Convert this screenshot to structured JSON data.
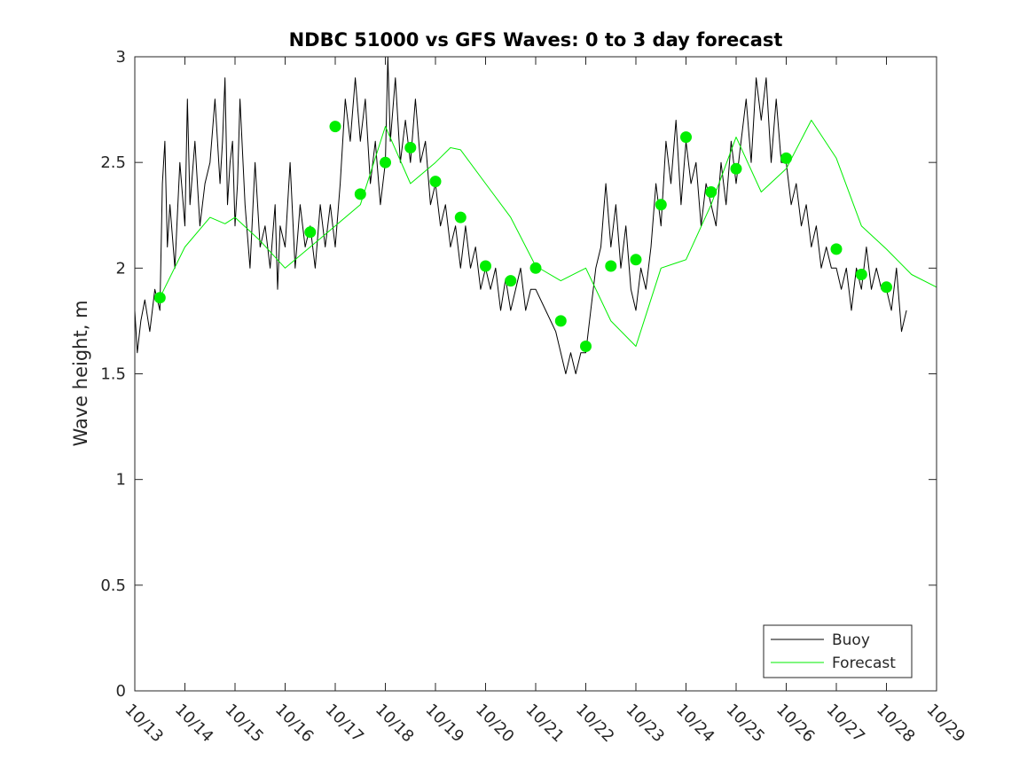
{
  "chart_data": {
    "type": "line",
    "title": "NDBC 51000 vs GFS Waves: 0 to 3 day forecast",
    "xlabel": "",
    "ylabel": "Wave height, m",
    "x_tick_labels": [
      "10/13",
      "10/14",
      "10/15",
      "10/16",
      "10/17",
      "10/18",
      "10/19",
      "10/20",
      "10/21",
      "10/22",
      "10/23",
      "10/24",
      "10/25",
      "10/26",
      "10/27",
      "10/28",
      "10/29"
    ],
    "y_ticks": [
      0,
      0.5,
      1,
      1.5,
      2,
      2.5,
      3
    ],
    "y_tick_labels": [
      "0",
      "0.5",
      "1",
      "1.5",
      "2",
      "2.5",
      "3"
    ],
    "xlim": [
      0,
      16
    ],
    "ylim": [
      0,
      3
    ],
    "x_units": "days since 10/13",
    "legend": {
      "position": "bottom-right",
      "entries": [
        "Buoy",
        "Forecast"
      ]
    },
    "colors": {
      "buoy": "#000000",
      "forecast": "#00ee00"
    },
    "series": [
      {
        "name": "Buoy",
        "color": "#000000",
        "points": [
          [
            0,
            1.8
          ],
          [
            0.05,
            1.6
          ],
          [
            0.12,
            1.75
          ],
          [
            0.2,
            1.85
          ],
          [
            0.3,
            1.7
          ],
          [
            0.4,
            1.9
          ],
          [
            0.5,
            1.8
          ],
          [
            0.55,
            2.4
          ],
          [
            0.6,
            2.6
          ],
          [
            0.65,
            2.1
          ],
          [
            0.7,
            2.3
          ],
          [
            0.8,
            2.0
          ],
          [
            0.9,
            2.5
          ],
          [
            1.0,
            2.2
          ],
          [
            1.05,
            2.8
          ],
          [
            1.1,
            2.3
          ],
          [
            1.2,
            2.6
          ],
          [
            1.3,
            2.2
          ],
          [
            1.4,
            2.4
          ],
          [
            1.5,
            2.5
          ],
          [
            1.6,
            2.8
          ],
          [
            1.7,
            2.4
          ],
          [
            1.75,
            2.6
          ],
          [
            1.8,
            2.9
          ],
          [
            1.85,
            2.3
          ],
          [
            1.9,
            2.5
          ],
          [
            1.95,
            2.6
          ],
          [
            2.0,
            2.2
          ],
          [
            2.05,
            2.4
          ],
          [
            2.1,
            2.8
          ],
          [
            2.2,
            2.3
          ],
          [
            2.3,
            2.0
          ],
          [
            2.4,
            2.5
          ],
          [
            2.5,
            2.1
          ],
          [
            2.6,
            2.2
          ],
          [
            2.7,
            2.0
          ],
          [
            2.8,
            2.3
          ],
          [
            2.85,
            1.9
          ],
          [
            2.9,
            2.2
          ],
          [
            3.0,
            2.1
          ],
          [
            3.1,
            2.5
          ],
          [
            3.2,
            2.0
          ],
          [
            3.3,
            2.3
          ],
          [
            3.4,
            2.1
          ],
          [
            3.5,
            2.2
          ],
          [
            3.6,
            2.0
          ],
          [
            3.7,
            2.3
          ],
          [
            3.8,
            2.1
          ],
          [
            3.9,
            2.3
          ],
          [
            4.0,
            2.1
          ],
          [
            4.1,
            2.4
          ],
          [
            4.2,
            2.8
          ],
          [
            4.3,
            2.6
          ],
          [
            4.4,
            2.9
          ],
          [
            4.5,
            2.6
          ],
          [
            4.6,
            2.8
          ],
          [
            4.7,
            2.4
          ],
          [
            4.8,
            2.6
          ],
          [
            4.9,
            2.3
          ],
          [
            5.0,
            2.5
          ],
          [
            5.05,
            3.0
          ],
          [
            5.1,
            2.6
          ],
          [
            5.2,
            2.9
          ],
          [
            5.3,
            2.5
          ],
          [
            5.4,
            2.7
          ],
          [
            5.5,
            2.5
          ],
          [
            5.6,
            2.8
          ],
          [
            5.7,
            2.5
          ],
          [
            5.8,
            2.6
          ],
          [
            5.9,
            2.3
          ],
          [
            6.0,
            2.4
          ],
          [
            6.1,
            2.2
          ],
          [
            6.2,
            2.3
          ],
          [
            6.3,
            2.1
          ],
          [
            6.4,
            2.2
          ],
          [
            6.5,
            2.0
          ],
          [
            6.6,
            2.2
          ],
          [
            6.7,
            2.0
          ],
          [
            6.8,
            2.1
          ],
          [
            6.9,
            1.9
          ],
          [
            7.0,
            2.0
          ],
          [
            7.1,
            1.9
          ],
          [
            7.2,
            2.0
          ],
          [
            7.3,
            1.8
          ],
          [
            7.4,
            1.95
          ],
          [
            7.5,
            1.8
          ],
          [
            7.6,
            1.9
          ],
          [
            7.7,
            2.0
          ],
          [
            7.8,
            1.8
          ],
          [
            7.9,
            1.9
          ],
          [
            8.0,
            1.9
          ],
          [
            8.2,
            1.8
          ],
          [
            8.4,
            1.7
          ],
          [
            8.5,
            1.6
          ],
          [
            8.6,
            1.5
          ],
          [
            8.7,
            1.6
          ],
          [
            8.8,
            1.5
          ],
          [
            8.9,
            1.6
          ],
          [
            9.0,
            1.6
          ],
          [
            9.1,
            1.8
          ],
          [
            9.2,
            2.0
          ],
          [
            9.3,
            2.1
          ],
          [
            9.4,
            2.4
          ],
          [
            9.5,
            2.1
          ],
          [
            9.6,
            2.3
          ],
          [
            9.7,
            2.0
          ],
          [
            9.8,
            2.2
          ],
          [
            9.9,
            1.9
          ],
          [
            10.0,
            1.8
          ],
          [
            10.1,
            2.0
          ],
          [
            10.2,
            1.9
          ],
          [
            10.3,
            2.1
          ],
          [
            10.4,
            2.4
          ],
          [
            10.5,
            2.2
          ],
          [
            10.6,
            2.6
          ],
          [
            10.7,
            2.4
          ],
          [
            10.8,
            2.7
          ],
          [
            10.9,
            2.3
          ],
          [
            11.0,
            2.6
          ],
          [
            11.1,
            2.4
          ],
          [
            11.2,
            2.5
          ],
          [
            11.3,
            2.2
          ],
          [
            11.4,
            2.4
          ],
          [
            11.5,
            2.3
          ],
          [
            11.6,
            2.2
          ],
          [
            11.7,
            2.5
          ],
          [
            11.8,
            2.3
          ],
          [
            11.9,
            2.6
          ],
          [
            12.0,
            2.4
          ],
          [
            12.1,
            2.6
          ],
          [
            12.2,
            2.8
          ],
          [
            12.3,
            2.5
          ],
          [
            12.4,
            2.9
          ],
          [
            12.5,
            2.7
          ],
          [
            12.6,
            2.9
          ],
          [
            12.7,
            2.5
          ],
          [
            12.8,
            2.8
          ],
          [
            12.9,
            2.5
          ],
          [
            13.0,
            2.5
          ],
          [
            13.1,
            2.3
          ],
          [
            13.2,
            2.4
          ],
          [
            13.3,
            2.2
          ],
          [
            13.4,
            2.3
          ],
          [
            13.5,
            2.1
          ],
          [
            13.6,
            2.2
          ],
          [
            13.7,
            2.0
          ],
          [
            13.8,
            2.1
          ],
          [
            13.9,
            2.0
          ],
          [
            14.0,
            2.0
          ],
          [
            14.1,
            1.9
          ],
          [
            14.2,
            2.0
          ],
          [
            14.3,
            1.8
          ],
          [
            14.4,
            2.0
          ],
          [
            14.5,
            1.9
          ],
          [
            14.6,
            2.1
          ],
          [
            14.7,
            1.9
          ],
          [
            14.8,
            2.0
          ],
          [
            14.9,
            1.9
          ],
          [
            15.0,
            1.9
          ],
          [
            15.1,
            1.8
          ],
          [
            15.2,
            2.0
          ],
          [
            15.3,
            1.7
          ],
          [
            15.4,
            1.8
          ]
        ]
      },
      {
        "name": "Forecast",
        "color": "#00ee00",
        "points": [
          [
            0.5,
            1.86
          ],
          [
            1.0,
            2.1
          ],
          [
            1.5,
            2.24
          ],
          [
            1.8,
            2.21
          ],
          [
            2.0,
            2.24
          ],
          [
            2.5,
            2.13
          ],
          [
            3.0,
            2.0
          ],
          [
            3.5,
            2.1
          ],
          [
            4.0,
            2.2
          ],
          [
            4.5,
            2.3
          ],
          [
            5.0,
            2.67
          ],
          [
            5.5,
            2.4
          ],
          [
            6.0,
            2.5
          ],
          [
            6.3,
            2.57
          ],
          [
            6.5,
            2.56
          ],
          [
            7.0,
            2.4
          ],
          [
            7.5,
            2.24
          ],
          [
            8.0,
            2.01
          ],
          [
            8.5,
            1.94
          ],
          [
            9.0,
            2.0
          ],
          [
            9.5,
            1.75
          ],
          [
            10.0,
            1.63
          ],
          [
            10.5,
            2.0
          ],
          [
            11.0,
            2.04
          ],
          [
            11.5,
            2.3
          ],
          [
            12.0,
            2.62
          ],
          [
            12.5,
            2.36
          ],
          [
            13.0,
            2.47
          ],
          [
            13.5,
            2.7
          ],
          [
            14.0,
            2.52
          ],
          [
            14.5,
            2.2
          ],
          [
            15.0,
            2.09
          ],
          [
            15.5,
            1.97
          ],
          [
            16.0,
            1.91
          ]
        ]
      }
    ],
    "forecast_markers": [
      [
        0.5,
        1.86
      ],
      [
        3.5,
        2.17
      ],
      [
        4.0,
        2.67
      ],
      [
        4.5,
        2.35
      ],
      [
        5.0,
        2.5
      ],
      [
        5.5,
        2.57
      ],
      [
        6.0,
        2.41
      ],
      [
        6.5,
        2.24
      ],
      [
        7.0,
        2.01
      ],
      [
        7.5,
        1.94
      ],
      [
        8.0,
        2.0
      ],
      [
        8.5,
        1.75
      ],
      [
        9.0,
        1.63
      ],
      [
        9.5,
        2.01
      ],
      [
        10.0,
        2.04
      ],
      [
        10.5,
        2.3
      ],
      [
        11.0,
        2.62
      ],
      [
        11.5,
        2.36
      ],
      [
        12.0,
        2.47
      ],
      [
        13.0,
        2.52
      ],
      [
        14.0,
        2.09
      ],
      [
        14.5,
        1.97
      ],
      [
        15.0,
        1.91
      ]
    ]
  }
}
